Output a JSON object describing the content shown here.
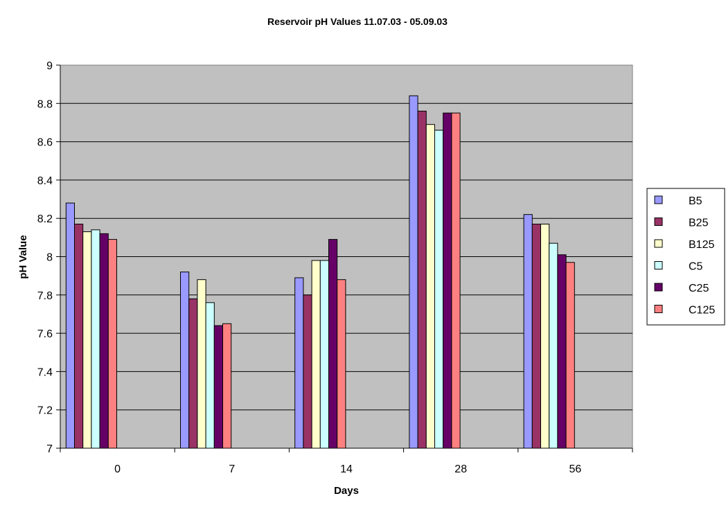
{
  "chart_data": {
    "type": "bar",
    "title": "Reservoir pH Values 11.07.03 - 05.09.03",
    "xlabel": "Days",
    "ylabel": "pH Value",
    "ylim": [
      7,
      9
    ],
    "ytick_step": 0.2,
    "ytick_labels": [
      "7",
      "7.2",
      "7.4",
      "7.6",
      "7.8",
      "8",
      "8.2",
      "8.4",
      "8.6",
      "8.8",
      "9"
    ],
    "categories": [
      "0",
      "7",
      "14",
      "28",
      "56"
    ],
    "grid": true,
    "legend_position": "right",
    "plot_background": "#c0c0c0",
    "series": [
      {
        "name": "B5",
        "color": "#9999ff",
        "values": [
          8.28,
          7.92,
          7.89,
          8.84,
          8.22
        ]
      },
      {
        "name": "B25",
        "color": "#993366",
        "values": [
          8.17,
          7.78,
          7.8,
          8.76,
          8.17
        ]
      },
      {
        "name": "B125",
        "color": "#ffffcc",
        "values": [
          8.13,
          7.88,
          7.98,
          8.69,
          8.17
        ]
      },
      {
        "name": "C5",
        "color": "#ccffff",
        "values": [
          8.14,
          7.76,
          7.98,
          8.66,
          8.07
        ]
      },
      {
        "name": "C25",
        "color": "#660066",
        "values": [
          8.12,
          7.64,
          8.09,
          8.75,
          8.01
        ]
      },
      {
        "name": "C125",
        "color": "#ff8080",
        "values": [
          8.09,
          7.65,
          7.88,
          8.75,
          7.97
        ]
      }
    ]
  }
}
